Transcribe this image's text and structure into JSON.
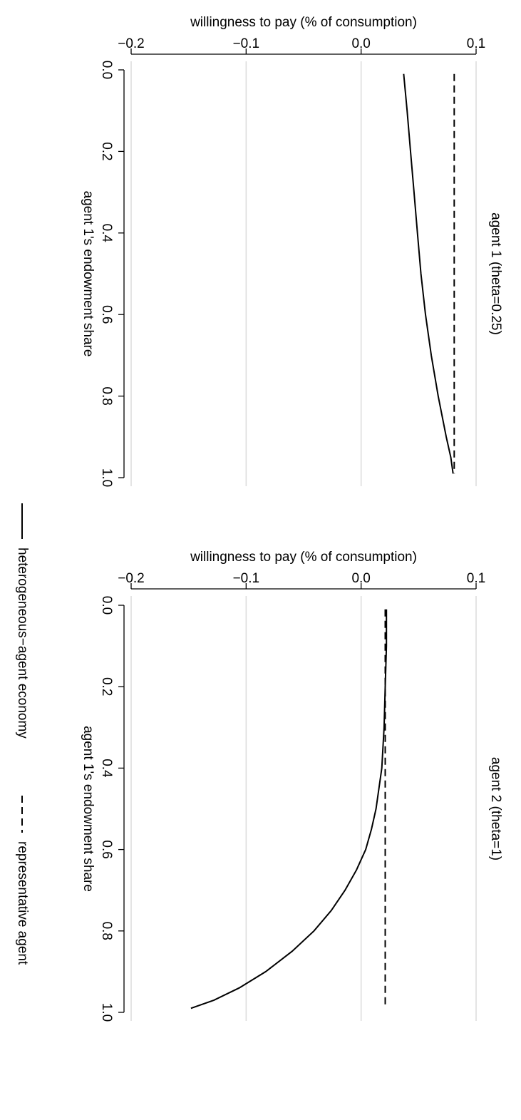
{
  "chart_data": [
    {
      "type": "line",
      "title": "agent 1  (theta=0.25)",
      "xlabel": "agent 1's endowment share",
      "ylabel": "willingness to pay (% of consumption)",
      "xlim": [
        0.0,
        1.0
      ],
      "ylim": [
        -0.2,
        0.1
      ],
      "x_ticks": [
        "0.0",
        "0.2",
        "0.4",
        "0.6",
        "0.8",
        "1.0"
      ],
      "y_ticks": [
        "0.1",
        "0.0",
        "−0.1",
        "−0.2"
      ],
      "grid": true,
      "series": [
        {
          "name": "heterogeneous−agent economy",
          "style": "solid",
          "x": [
            0.01,
            0.1,
            0.2,
            0.3,
            0.4,
            0.5,
            0.6,
            0.7,
            0.8,
            0.9,
            0.95,
            0.99
          ],
          "y": [
            0.037,
            0.04,
            0.043,
            0.046,
            0.049,
            0.052,
            0.056,
            0.061,
            0.067,
            0.074,
            0.078,
            0.08
          ]
        },
        {
          "name": "representative agent",
          "style": "dashed",
          "x": [
            0.01,
            0.99
          ],
          "y": [
            0.081,
            0.081
          ]
        }
      ]
    },
    {
      "type": "line",
      "title": "agent 2  (theta=1)",
      "xlabel": "agent 1's endowment share",
      "ylabel": "willingness to pay (% of consumption)",
      "xlim": [
        0.0,
        1.0
      ],
      "ylim": [
        -0.2,
        0.1
      ],
      "x_ticks": [
        "0.0",
        "0.2",
        "0.4",
        "0.6",
        "0.8",
        "1.0"
      ],
      "y_ticks": [
        "0.1",
        "0.0",
        "−0.1",
        "−0.2"
      ],
      "grid": true,
      "series": [
        {
          "name": "heterogeneous−agent economy",
          "style": "solid",
          "x": [
            0.01,
            0.1,
            0.2,
            0.3,
            0.4,
            0.5,
            0.55,
            0.6,
            0.65,
            0.7,
            0.75,
            0.8,
            0.85,
            0.9,
            0.94,
            0.97,
            0.99
          ],
          "y": [
            0.022,
            0.022,
            0.021,
            0.02,
            0.018,
            0.013,
            0.009,
            0.004,
            -0.004,
            -0.014,
            -0.026,
            -0.041,
            -0.06,
            -0.083,
            -0.106,
            -0.128,
            -0.148
          ]
        },
        {
          "name": "representative agent",
          "style": "dashed",
          "x": [
            0.01,
            0.99
          ],
          "y": [
            0.021,
            0.021
          ]
        }
      ]
    }
  ],
  "legend": {
    "placement": "bottom",
    "items": [
      {
        "label": "heterogeneous−agent economy",
        "style": "solid"
      },
      {
        "label": "representative agent",
        "style": "dashed"
      }
    ]
  }
}
